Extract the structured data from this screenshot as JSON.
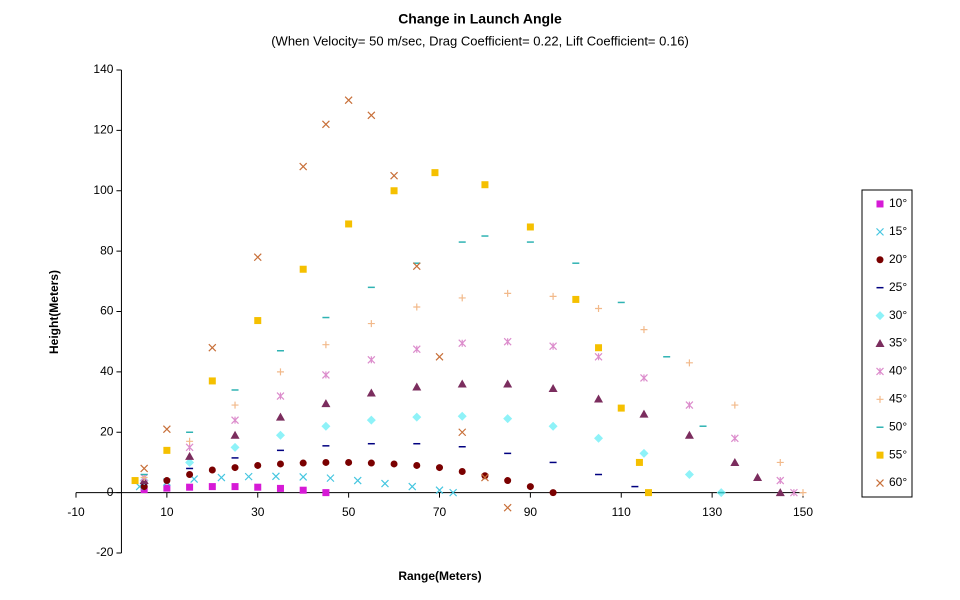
{
  "chart_data": {
    "type": "scatter",
    "title": "Change in Launch Angle",
    "subtitle": "(When Velocity= 50 m/sec, Drag Coefficient= 0.22, Lift Coefficient= 0.16)",
    "x_label": "Range(Meters)",
    "y_label": "Height(Meters)",
    "xlim": [
      -10,
      150
    ],
    "ylim": [
      -20,
      140
    ],
    "xticks": [
      -10,
      10,
      30,
      50,
      70,
      90,
      110,
      130,
      150
    ],
    "yticks": [
      -20,
      0,
      20,
      40,
      60,
      80,
      100,
      120,
      140
    ],
    "legend": "right",
    "series": [
      {
        "name": "10°",
        "color": "#d61ad6",
        "marker": "square",
        "x": [
          5,
          10,
          15,
          20,
          25,
          30,
          35,
          40,
          45
        ],
        "values": [
          1,
          1.5,
          1.8,
          2,
          2,
          1.8,
          1.4,
          0.8,
          0
        ]
      },
      {
        "name": "15°",
        "color": "#45c6e0",
        "marker": "x",
        "x": [
          4,
          10,
          16,
          22,
          28,
          34,
          40,
          46,
          52,
          58,
          64,
          70,
          73
        ],
        "values": [
          2,
          3.5,
          4.5,
          5,
          5.3,
          5.4,
          5.2,
          4.8,
          4,
          3,
          2,
          0.8,
          0
        ]
      },
      {
        "name": "20°",
        "color": "#7a0000",
        "marker": "circle",
        "x": [
          5,
          10,
          15,
          20,
          25,
          30,
          35,
          40,
          45,
          50,
          55,
          60,
          65,
          70,
          75,
          80,
          85,
          90,
          95
        ],
        "values": [
          2,
          4,
          6,
          7.5,
          8.3,
          9,
          9.5,
          9.8,
          10,
          10,
          9.8,
          9.5,
          9,
          8.3,
          7,
          5.6,
          4,
          2,
          0
        ]
      },
      {
        "name": "25°",
        "color": "#000080",
        "marker": "dash",
        "x": [
          5,
          15,
          25,
          35,
          45,
          55,
          65,
          75,
          85,
          95,
          105,
          113
        ],
        "values": [
          3,
          8,
          11.5,
          14,
          15.5,
          16.2,
          16.2,
          15.2,
          13,
          10,
          6,
          2
        ]
      },
      {
        "name": "30°",
        "color": "#8ef2f8",
        "marker": "diamond",
        "x": [
          5,
          15,
          25,
          35,
          45,
          55,
          65,
          75,
          85,
          95,
          105,
          115,
          125,
          132
        ],
        "values": [
          4,
          10,
          15,
          19,
          22,
          24,
          25,
          25.3,
          24.5,
          22,
          18,
          13,
          6,
          0
        ]
      },
      {
        "name": "35°",
        "color": "#7b2d5e",
        "marker": "triangle",
        "x": [
          5,
          15,
          25,
          35,
          45,
          55,
          65,
          75,
          85,
          95,
          105,
          115,
          125,
          135,
          140,
          145
        ],
        "values": [
          4,
          12,
          19,
          25,
          29.5,
          33,
          35,
          36,
          36,
          34.5,
          31,
          26,
          19,
          10,
          5,
          0
        ]
      },
      {
        "name": "40°",
        "color": "#dc8ccc",
        "marker": "asterisk",
        "x": [
          5,
          15,
          25,
          35,
          45,
          55,
          65,
          75,
          85,
          95,
          105,
          115,
          125,
          135,
          145,
          148
        ],
        "values": [
          5,
          15,
          24,
          32,
          39,
          44,
          47.5,
          49.5,
          50,
          48.5,
          45,
          38,
          29,
          18,
          4,
          0
        ]
      },
      {
        "name": "45°",
        "color": "#f2b98a",
        "marker": "plus",
        "x": [
          5,
          15,
          25,
          35,
          45,
          55,
          65,
          75,
          85,
          95,
          105,
          115,
          125,
          135,
          145,
          150
        ],
        "values": [
          5,
          17,
          29,
          40,
          49,
          56,
          61.5,
          64.5,
          66,
          65,
          61,
          54,
          43,
          29,
          10,
          0
        ]
      },
      {
        "name": "50°",
        "color": "#2fb3b3",
        "marker": "dash",
        "x": [
          5,
          15,
          25,
          35,
          45,
          55,
          65,
          75,
          80,
          90,
          100,
          110,
          120,
          128,
          132
        ],
        "values": [
          6,
          20,
          34,
          47,
          58,
          68,
          76,
          83,
          85,
          83,
          76,
          63,
          45,
          22,
          0
        ]
      },
      {
        "name": "55°",
        "color": "#f5c000",
        "marker": "square",
        "x": [
          3,
          10,
          20,
          30,
          40,
          50,
          60,
          69,
          80,
          90,
          100,
          105,
          110,
          114,
          116
        ],
        "values": [
          4,
          14,
          37,
          57,
          74,
          89,
          100,
          106,
          102,
          88,
          64,
          48,
          28,
          10,
          0
        ]
      },
      {
        "name": "60°",
        "color": "#c8703a",
        "marker": "x",
        "x": [
          5,
          10,
          20,
          30,
          40,
          45,
          50,
          55,
          60,
          65,
          70,
          75,
          80,
          85
        ],
        "values": [
          8,
          21,
          48,
          78,
          108,
          122,
          130,
          125,
          105,
          75,
          45,
          20,
          5,
          -5
        ]
      }
    ]
  }
}
